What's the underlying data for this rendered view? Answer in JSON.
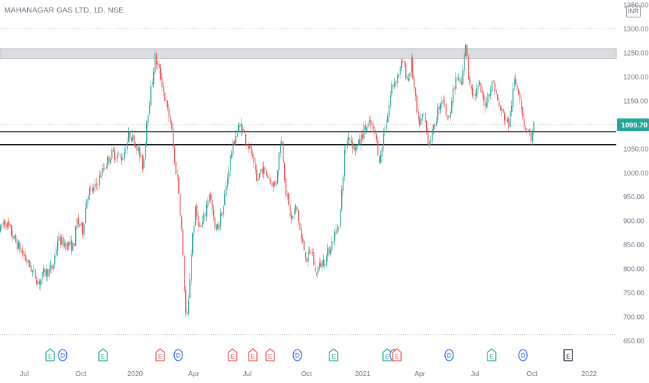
{
  "chart_data": {
    "type": "candlestick",
    "title": "MAHANAGAR GAS LTD, 1D, NSE",
    "currency": "INR",
    "ylim": [
      640,
      1360
    ],
    "y_ticks": [
      650,
      700,
      750,
      800,
      850,
      900,
      950,
      1000,
      1050,
      1100,
      1150,
      1200,
      1250,
      1300,
      1350
    ],
    "y_tick_labels": [
      "650.00",
      "700.00",
      "750.00",
      "800.00",
      "850.00",
      "900.00",
      "950.00",
      "1000.00",
      "1050.00",
      "1100.00",
      "1150.00",
      "1200.00",
      "1250.00",
      "1300.00",
      "1350.00"
    ],
    "x_labels": [
      "Jul",
      "Oct",
      "2020",
      "Apr",
      "Jul",
      "Oct",
      "2021",
      "Apr",
      "Jul",
      "Oct",
      "2022"
    ],
    "last_price": 1099.7,
    "last_price_label": "1099.70",
    "colors": {
      "up": "#26a69a",
      "down": "#ef5350",
      "last_price_bg": "#26a69a",
      "zone": "#dcdde1"
    },
    "resistance_zone": [
      1237,
      1258
    ],
    "horizontal_lines": [
      1085,
      1058
    ],
    "dotted_levels": [
      1300,
      1100,
      662
    ],
    "price_path": [
      [
        0,
        880
      ],
      [
        5,
        900
      ],
      [
        12,
        885
      ],
      [
        20,
        860
      ],
      [
        28,
        840
      ],
      [
        40,
        810
      ],
      [
        55,
        770
      ],
      [
        62,
        790
      ],
      [
        75,
        800
      ],
      [
        82,
        860
      ],
      [
        95,
        850
      ],
      [
        105,
        845
      ],
      [
        110,
        900
      ],
      [
        118,
        880
      ],
      [
        125,
        960
      ],
      [
        135,
        965
      ],
      [
        145,
        1000
      ],
      [
        152,
        1020
      ],
      [
        160,
        1040
      ],
      [
        175,
        1030
      ],
      [
        185,
        1080
      ],
      [
        195,
        1060
      ],
      [
        205,
        1010
      ],
      [
        210,
        1110
      ],
      [
        215,
        1160
      ],
      [
        222,
        1240
      ],
      [
        230,
        1200
      ],
      [
        238,
        1140
      ],
      [
        245,
        1100
      ],
      [
        250,
        1020
      ],
      [
        255,
        980
      ],
      [
        260,
        880
      ],
      [
        264,
        760
      ],
      [
        267,
        680
      ],
      [
        270,
        730
      ],
      [
        275,
        860
      ],
      [
        280,
        920
      ],
      [
        287,
        880
      ],
      [
        293,
        910
      ],
      [
        300,
        960
      ],
      [
        308,
        880
      ],
      [
        313,
        890
      ],
      [
        320,
        930
      ],
      [
        330,
        1030
      ],
      [
        338,
        1080
      ],
      [
        345,
        1100
      ],
      [
        352,
        1070
      ],
      [
        360,
        1040
      ],
      [
        368,
        980
      ],
      [
        375,
        1010
      ],
      [
        385,
        990
      ],
      [
        395,
        970
      ],
      [
        403,
        1080
      ],
      [
        410,
        960
      ],
      [
        418,
        900
      ],
      [
        425,
        930
      ],
      [
        432,
        860
      ],
      [
        440,
        820
      ],
      [
        447,
        840
      ],
      [
        452,
        790
      ],
      [
        460,
        810
      ],
      [
        467,
        820
      ],
      [
        472,
        840
      ],
      [
        480,
        870
      ],
      [
        487,
        900
      ],
      [
        490,
        960
      ],
      [
        494,
        1040
      ],
      [
        500,
        1080
      ],
      [
        508,
        1050
      ],
      [
        515,
        1060
      ],
      [
        522,
        1090
      ],
      [
        530,
        1100
      ],
      [
        538,
        1080
      ],
      [
        545,
        1020
      ],
      [
        550,
        1080
      ],
      [
        556,
        1120
      ],
      [
        562,
        1180
      ],
      [
        570,
        1200
      ],
      [
        578,
        1230
      ],
      [
        585,
        1190
      ],
      [
        590,
        1230
      ],
      [
        595,
        1160
      ],
      [
        600,
        1100
      ],
      [
        608,
        1120
      ],
      [
        615,
        1060
      ],
      [
        622,
        1090
      ],
      [
        628,
        1130
      ],
      [
        635,
        1160
      ],
      [
        642,
        1110
      ],
      [
        648,
        1150
      ],
      [
        655,
        1200
      ],
      [
        662,
        1180
      ],
      [
        668,
        1270
      ],
      [
        672,
        1200
      ],
      [
        680,
        1160
      ],
      [
        688,
        1180
      ],
      [
        695,
        1140
      ],
      [
        702,
        1170
      ],
      [
        708,
        1190
      ],
      [
        715,
        1140
      ],
      [
        722,
        1120
      ],
      [
        730,
        1100
      ],
      [
        738,
        1190
      ],
      [
        745,
        1170
      ],
      [
        752,
        1100
      ],
      [
        758,
        1085
      ],
      [
        763,
        1070
      ],
      [
        766,
        1099.7
      ]
    ],
    "events": [
      {
        "label": "E",
        "type": "earnings-green"
      },
      {
        "label": "D",
        "type": "dividend"
      },
      {
        "label": "E",
        "type": "earnings-green"
      },
      {
        "label": "E",
        "type": "earnings-red"
      },
      {
        "label": "D",
        "type": "dividend"
      },
      {
        "label": "E",
        "type": "earnings-red"
      },
      {
        "label": "E",
        "type": "earnings-red"
      },
      {
        "label": "E",
        "type": "earnings-red"
      },
      {
        "label": "D",
        "type": "dividend"
      },
      {
        "label": "E",
        "type": "earnings-green"
      },
      {
        "label": "E",
        "type": "earnings-green"
      },
      {
        "label": "D",
        "type": "dividend"
      },
      {
        "label": "E",
        "type": "earnings-red"
      },
      {
        "label": "D",
        "type": "dividend"
      },
      {
        "label": "E",
        "type": "earnings-green"
      },
      {
        "label": "D",
        "type": "dividend"
      },
      {
        "label": "E",
        "type": "earnings-future"
      }
    ]
  }
}
